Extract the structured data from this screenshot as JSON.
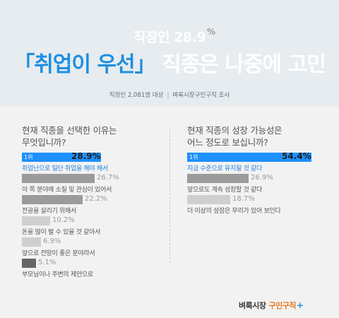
{
  "header": {
    "line1_text": "직장인 28.9",
    "line1_pct": "%",
    "line2_accent": "「취업이 우선」",
    "line2_rest": " 직종은 나중에 고민",
    "byline_left": "직장인 2,081명 대상",
    "byline_sep": "|",
    "byline_right": "벼룩시장구인구직 조사"
  },
  "left": {
    "title": "현재 직종을 선택한 이유는\n무엇입니까?",
    "rank_label": "1위"
  },
  "right": {
    "title": "현재 직종의 성장 가능성은\n어느 정도로 보십니까?",
    "rank_label": "1위"
  },
  "colors": {
    "accent": "#1e90ff",
    "header_bg": "#e6ecef",
    "body_bg": "#f2f2f2",
    "logo_orange": "#e87722"
  },
  "logo": {
    "brand": "벼룩시장",
    "sub": "구인구직",
    "plus": "+"
  },
  "chart_data": [
    {
      "type": "bar",
      "title": "현재 직종을 선택한 이유는 무엇입니까?",
      "categories": [
        "취업난으로 일단 취업을 해야 해서",
        "이 쪽 분야에 소질 및 관심이 있어서",
        "전공을 살리기 위해서",
        "돈을 많이 벌 수 있을 것 같아서",
        "앞으로 전망이 좋은 분야라서",
        "부모님이나 주변의 제안으로"
      ],
      "values": [
        28.9,
        26.7,
        22.2,
        10.2,
        6.9,
        5.1
      ],
      "value_labels": [
        "28.9%",
        "26.7%",
        "22.2%",
        "10.2%",
        "6.9%",
        "5.1%"
      ],
      "colors": [
        "#1e90ff",
        "#9b9b9b",
        "#9b9b9b",
        "#cfcfcf",
        "#cfcfcf",
        "#666666"
      ]
    },
    {
      "type": "bar",
      "title": "현재 직종의 성장 가능성은 어느 정도로 보십니까?",
      "categories": [
        "지금 수준으로 유지될 것 같다",
        "앞으로도 계속 성장할 것 같다",
        "더 이상의 성장은 무리가 있어 보인다"
      ],
      "values": [
        54.4,
        26.9,
        18.7
      ],
      "value_labels": [
        "54.4%",
        "26.9%",
        "18.7%"
      ],
      "colors": [
        "#1e90ff",
        "#9b9b9b",
        "#cfcfcf"
      ]
    }
  ]
}
